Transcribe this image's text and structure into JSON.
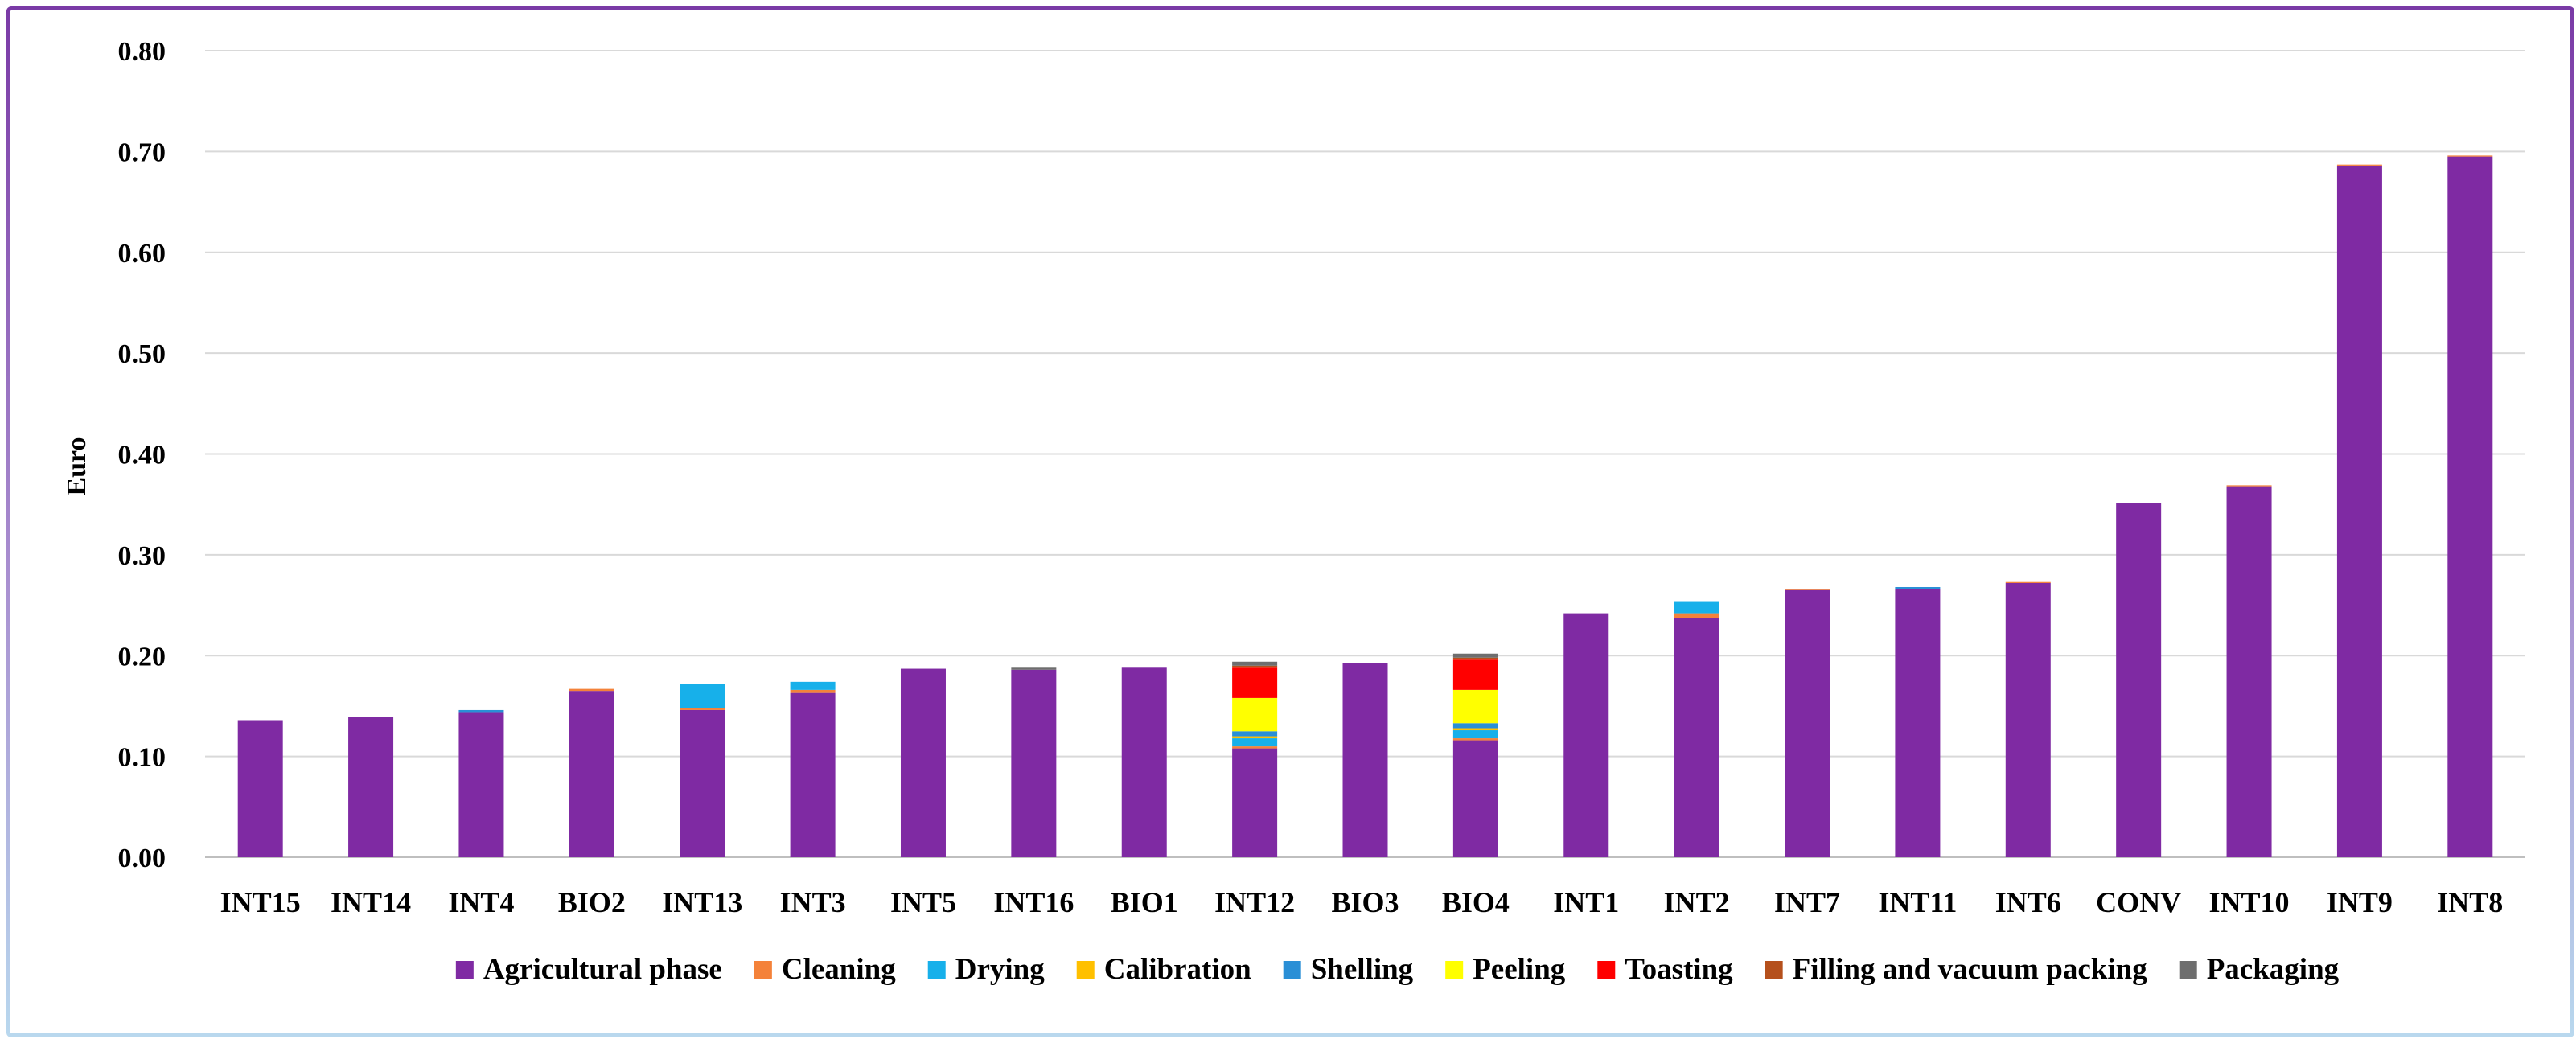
{
  "chart_data": {
    "type": "bar",
    "stacked": true,
    "title": "",
    "xlabel": "",
    "ylabel": "Euro",
    "ylim": [
      0,
      0.8
    ],
    "yticks": [
      "0.00",
      "0.10",
      "0.20",
      "0.30",
      "0.40",
      "0.50",
      "0.60",
      "0.70",
      "0.80"
    ],
    "grid": true,
    "legend_position": "bottom",
    "categories": [
      "INT15",
      "INT14",
      "INT4",
      "BIO2",
      "INT13",
      "INT3",
      "INT5",
      "INT16",
      "BIO1",
      "INT12",
      "BIO3",
      "BIO4",
      "INT1",
      "INT2",
      "INT7",
      "INT11",
      "INT6",
      "CONV",
      "INT10",
      "INT9",
      "INT8"
    ],
    "series": [
      {
        "name": "Agricultural phase",
        "color": "#7f2aa3",
        "values": [
          0.136,
          0.139,
          0.144,
          0.165,
          0.146,
          0.163,
          0.187,
          0.186,
          0.188,
          0.108,
          0.193,
          0.116,
          0.242,
          0.237,
          0.265,
          0.266,
          0.272,
          0.351,
          0.368,
          0.686,
          0.695
        ]
      },
      {
        "name": "Cleaning",
        "color": "#f4823a",
        "values": [
          0,
          0,
          0,
          0.002,
          0.002,
          0.003,
          0,
          0,
          0,
          0.002,
          0,
          0.002,
          0,
          0.005,
          0.001,
          0,
          0.001,
          0,
          0.001,
          0.001,
          0.001
        ]
      },
      {
        "name": "Drying",
        "color": "#17b0ea",
        "values": [
          0,
          0,
          0,
          0,
          0.024,
          0.008,
          0,
          0,
          0,
          0.008,
          0,
          0.008,
          0,
          0.012,
          0,
          0,
          0,
          0,
          0,
          0,
          0
        ]
      },
      {
        "name": "Calibration",
        "color": "#ffc000",
        "values": [
          0,
          0,
          0,
          0,
          0,
          0,
          0,
          0,
          0,
          0.002,
          0,
          0.002,
          0,
          0,
          0,
          0,
          0,
          0,
          0,
          0,
          0
        ]
      },
      {
        "name": "Shelling",
        "color": "#2a8fd6",
        "values": [
          0,
          0,
          0.002,
          0,
          0,
          0,
          0,
          0,
          0,
          0.005,
          0,
          0.005,
          0,
          0,
          0,
          0.002,
          0,
          0,
          0,
          0,
          0
        ]
      },
      {
        "name": "Peeling",
        "color": "#ffff00",
        "values": [
          0,
          0,
          0,
          0,
          0,
          0,
          0,
          0,
          0,
          0.033,
          0,
          0.033,
          0,
          0,
          0,
          0,
          0,
          0,
          0,
          0,
          0
        ]
      },
      {
        "name": "Toasting",
        "color": "#ff0000",
        "values": [
          0,
          0,
          0,
          0,
          0,
          0,
          0,
          0,
          0,
          0.03,
          0,
          0.03,
          0,
          0,
          0,
          0,
          0,
          0,
          0,
          0,
          0
        ]
      },
      {
        "name": "Filling and vacuum packing",
        "color": "#b5501c",
        "values": [
          0,
          0,
          0,
          0,
          0,
          0,
          0,
          0,
          0,
          0.002,
          0,
          0.002,
          0,
          0,
          0,
          0,
          0,
          0,
          0,
          0,
          0
        ]
      },
      {
        "name": "Packaging",
        "color": "#6e6e6e",
        "values": [
          0,
          0,
          0,
          0,
          0,
          0,
          0,
          0.002,
          0,
          0.004,
          0,
          0.004,
          0,
          0,
          0,
          0,
          0,
          0,
          0,
          0,
          0
        ]
      }
    ]
  }
}
